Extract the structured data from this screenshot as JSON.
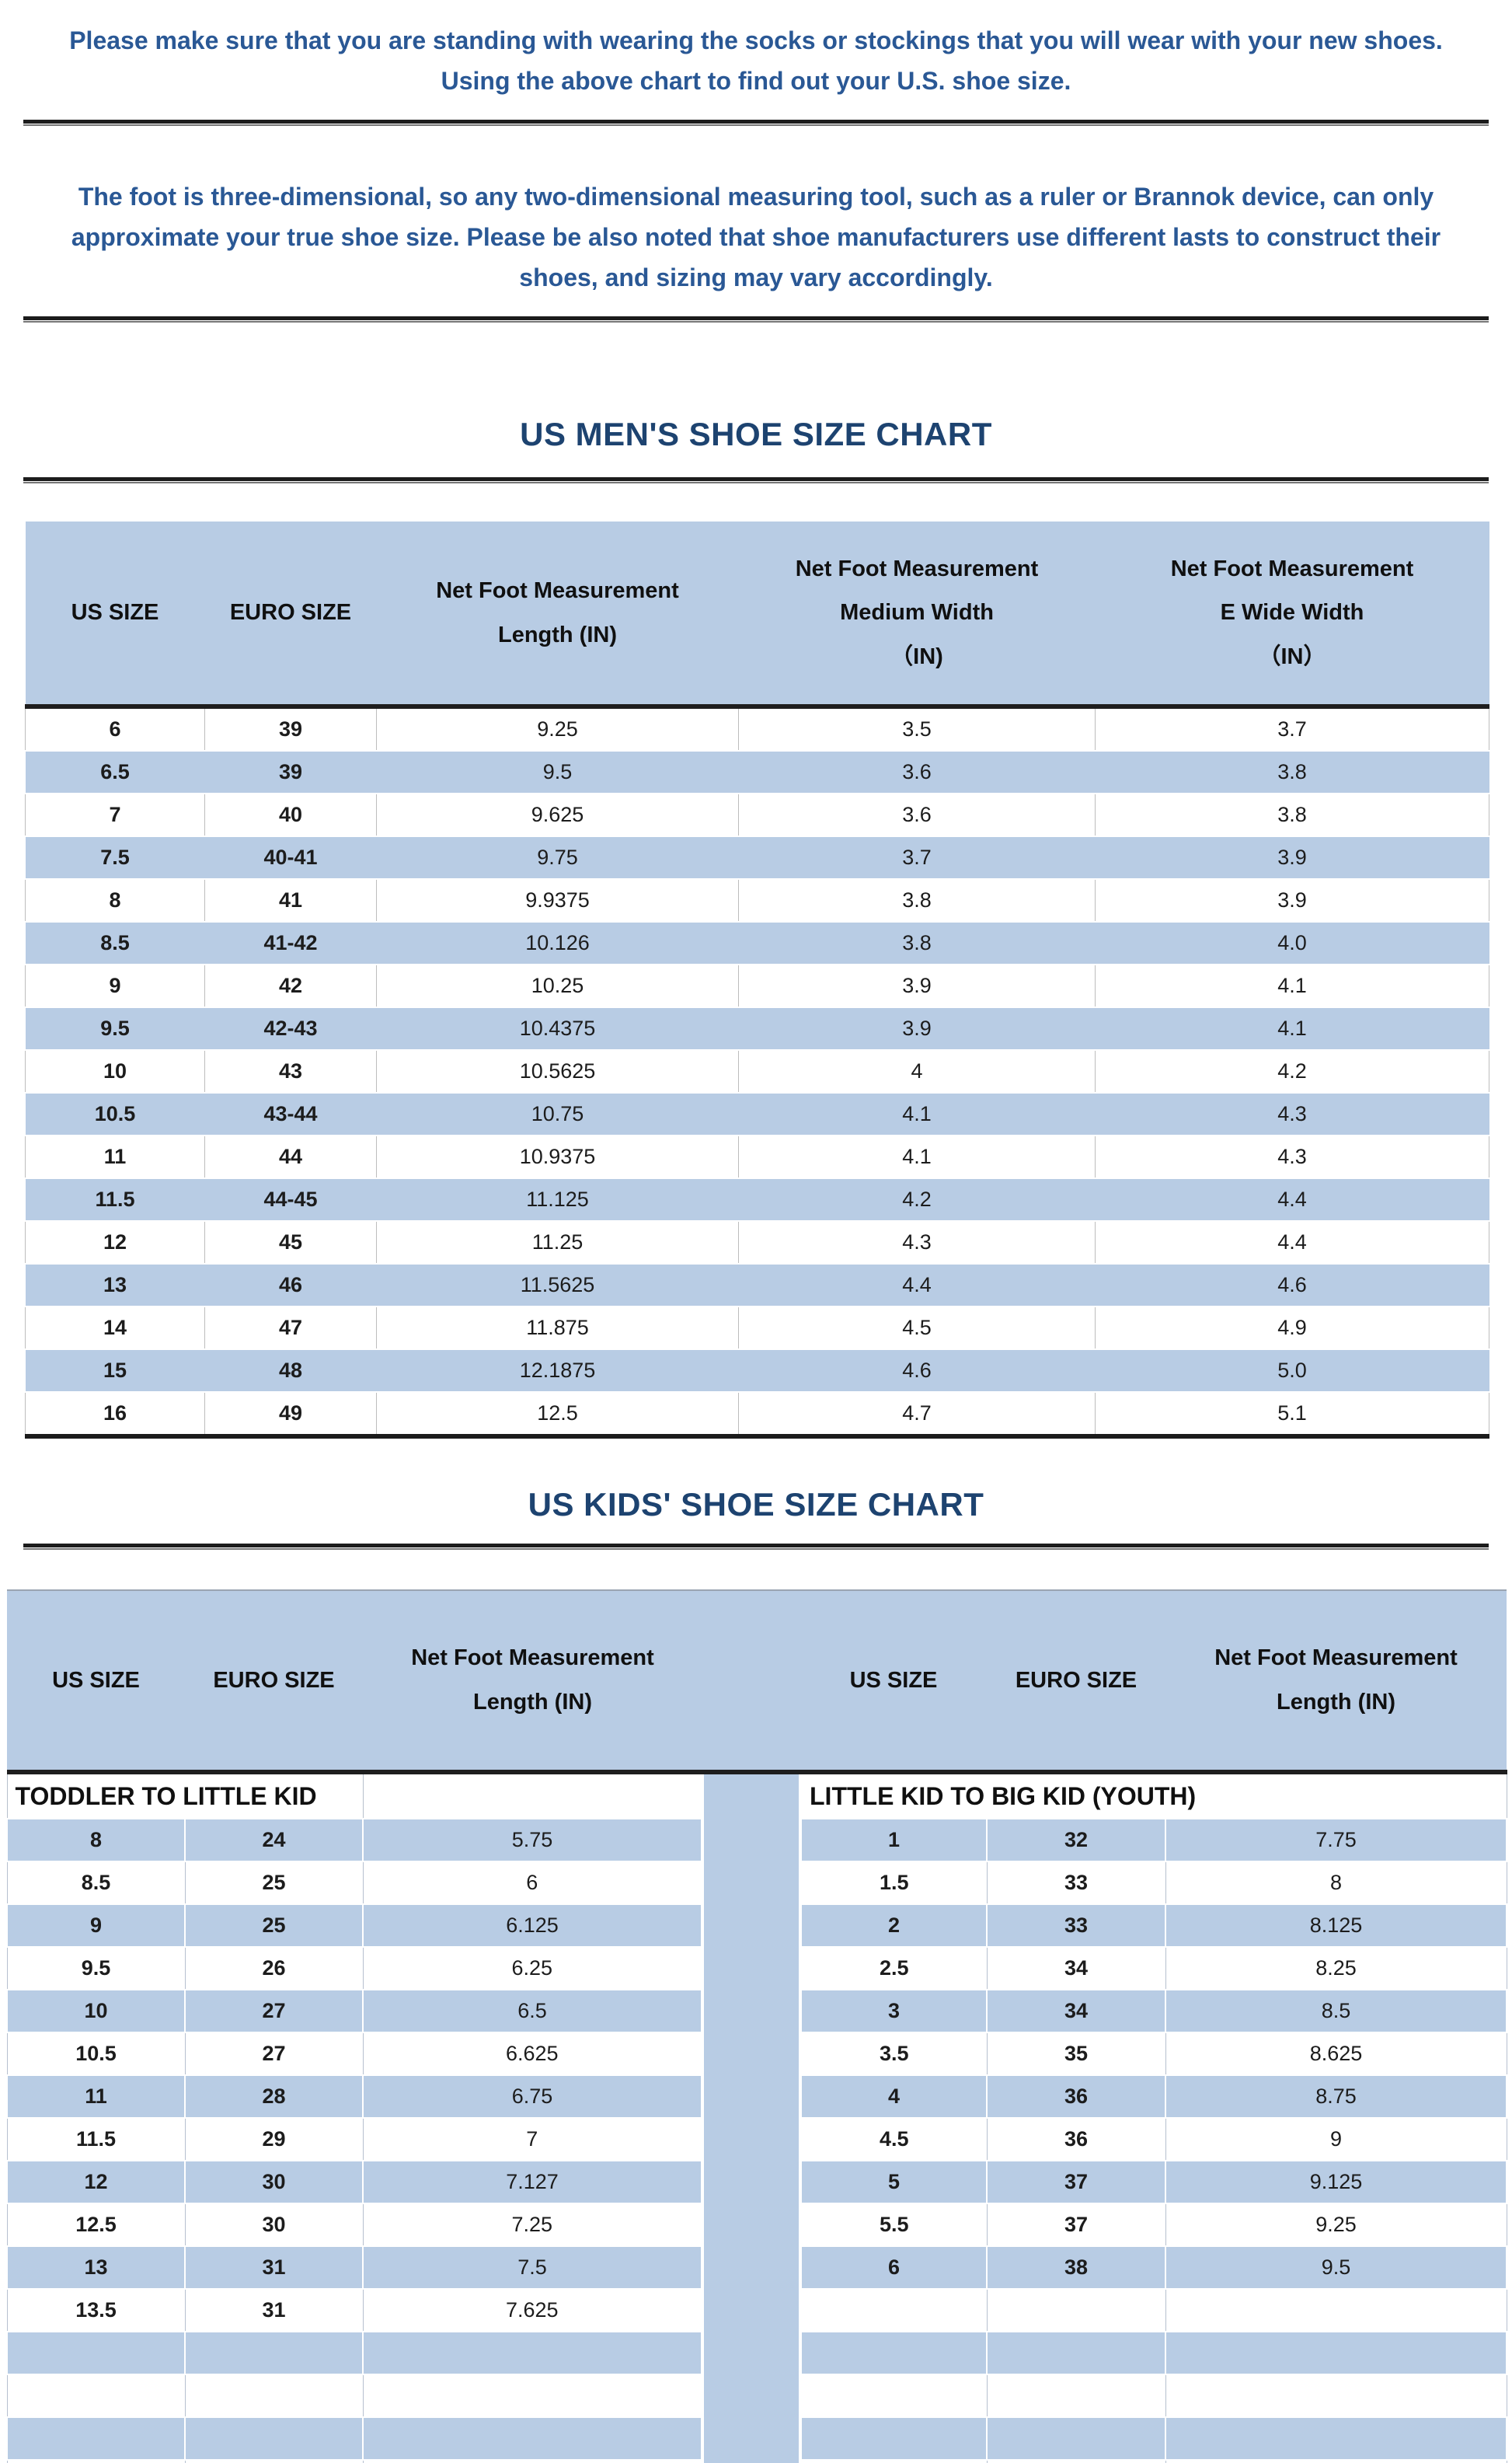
{
  "colors": {
    "band": "#b8cce4",
    "navy": "#1d4370",
    "introblue": "#2a5895",
    "ink": "#1c1c1c"
  },
  "intro": {
    "note1": "Please make sure that you are standing with wearing the socks or stockings that you will wear with your new shoes.\nUsing the above chart to find out your U.S. shoe size.",
    "note2": "The foot is three-dimensional, so any two-dimensional measuring tool, such as a ruler or Brannok device, can only\napproximate your true shoe size. Please be also noted that shoe manufacturers use different lasts to construct their\nshoes, and sizing may vary accordingly."
  },
  "men": {
    "title": "US MEN'S SHOE SIZE CHART",
    "headers": [
      "US SIZE",
      "EURO SIZE",
      "Net Foot Measurement\nLength (IN)",
      "Net Foot Measurement\nMedium Width\n（IN)",
      "Net Foot Measurement\nE Wide Width\n（IN）"
    ],
    "rows": [
      [
        "6",
        "39",
        "9.25",
        "3.5",
        "3.7"
      ],
      [
        "6.5",
        "39",
        "9.5",
        "3.6",
        "3.8"
      ],
      [
        "7",
        "40",
        "9.625",
        "3.6",
        "3.8"
      ],
      [
        "7.5",
        "40-41",
        "9.75",
        "3.7",
        "3.9"
      ],
      [
        "8",
        "41",
        "9.9375",
        "3.8",
        "3.9"
      ],
      [
        "8.5",
        "41-42",
        "10.126",
        "3.8",
        "4.0"
      ],
      [
        "9",
        "42",
        "10.25",
        "3.9",
        "4.1"
      ],
      [
        "9.5",
        "42-43",
        "10.4375",
        "3.9",
        "4.1"
      ],
      [
        "10",
        "43",
        "10.5625",
        "4",
        "4.2"
      ],
      [
        "10.5",
        "43-44",
        "10.75",
        "4.1",
        "4.3"
      ],
      [
        "11",
        "44",
        "10.9375",
        "4.1",
        "4.3"
      ],
      [
        "11.5",
        "44-45",
        "11.125",
        "4.2",
        "4.4"
      ],
      [
        "12",
        "45",
        "11.25",
        "4.3",
        "4.4"
      ],
      [
        "13",
        "46",
        "11.5625",
        "4.4",
        "4.6"
      ],
      [
        "14",
        "47",
        "11.875",
        "4.5",
        "4.9"
      ],
      [
        "15",
        "48",
        "12.1875",
        "4.6",
        "5.0"
      ],
      [
        "16",
        "49",
        "12.5",
        "4.7",
        "5.1"
      ]
    ]
  },
  "kids": {
    "title": "US KIDS' SHOE SIZE CHART",
    "headers": [
      "US SIZE",
      "EURO SIZE",
      "Net Foot Measurement\nLength (IN)"
    ],
    "group_left": "TODDLER TO LITTLE KID",
    "group_right": "LITTLE KID TO BIG KID (YOUTH)",
    "rows": [
      [
        "8",
        "24",
        "5.75",
        "1",
        "32",
        "7.75"
      ],
      [
        "8.5",
        "25",
        "6",
        "1.5",
        "33",
        "8"
      ],
      [
        "9",
        "25",
        "6.125",
        "2",
        "33",
        "8.125"
      ],
      [
        "9.5",
        "26",
        "6.25",
        "2.5",
        "34",
        "8.25"
      ],
      [
        "10",
        "27",
        "6.5",
        "3",
        "34",
        "8.5"
      ],
      [
        "10.5",
        "27",
        "6.625",
        "3.5",
        "35",
        "8.625"
      ],
      [
        "11",
        "28",
        "6.75",
        "4",
        "36",
        "8.75"
      ],
      [
        "11.5",
        "29",
        "7",
        "4.5",
        "36",
        "9"
      ],
      [
        "12",
        "30",
        "7.127",
        "5",
        "37",
        "9.125"
      ],
      [
        "12.5",
        "30",
        "7.25",
        "5.5",
        "37",
        "9.25"
      ],
      [
        "13",
        "31",
        "7.5",
        "6",
        "38",
        "9.5"
      ],
      [
        "13.5",
        "31",
        "7.625",
        "",
        "",
        ""
      ],
      [
        "",
        "",
        "",
        "",
        "",
        ""
      ],
      [
        "",
        "",
        "",
        "",
        "",
        ""
      ],
      [
        "",
        "",
        "",
        "",
        "",
        ""
      ],
      [
        "",
        "",
        "",
        "",
        "",
        ""
      ]
    ]
  }
}
